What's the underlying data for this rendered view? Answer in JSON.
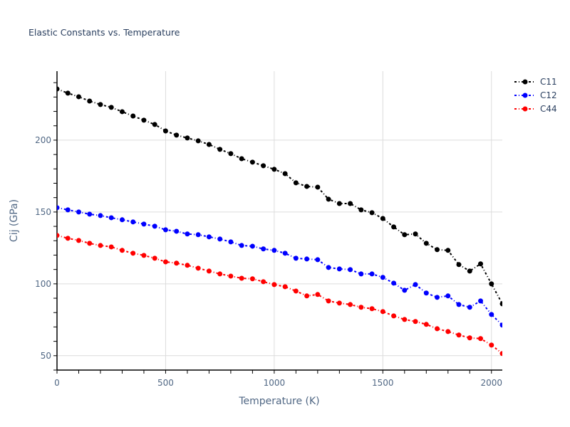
{
  "chart_data": {
    "type": "line",
    "title": "Elastic Constants vs. Temperature",
    "xlabel": "Temperature (K)",
    "ylabel": "Cij (GPa)",
    "xlim": [
      0,
      2050
    ],
    "ylim": [
      40,
      248
    ],
    "xticks": [
      0,
      500,
      1000,
      1500,
      2000
    ],
    "yticks": [
      50,
      100,
      150,
      200
    ],
    "x_minor_step": 100,
    "y_minor_step": 10,
    "grid": true,
    "legend_position": "top-right",
    "x": [
      0,
      50,
      100,
      150,
      200,
      250,
      300,
      350,
      400,
      450,
      500,
      550,
      600,
      650,
      700,
      750,
      800,
      850,
      900,
      950,
      1000,
      1050,
      1100,
      1150,
      1200,
      1250,
      1300,
      1350,
      1400,
      1450,
      1500,
      1550,
      1600,
      1650,
      1700,
      1750,
      1800,
      1850,
      1900,
      1950,
      2000,
      2050
    ],
    "series": [
      {
        "name": "C11",
        "color": "#000000",
        "values": [
          235.6,
          232.7,
          230.2,
          227.2,
          224.8,
          222.8,
          219.8,
          216.8,
          213.9,
          210.9,
          206.4,
          203.5,
          201.5,
          199.5,
          197.0,
          193.6,
          190.6,
          187.1,
          184.7,
          182.2,
          179.7,
          176.7,
          170.3,
          167.8,
          167.3,
          158.9,
          155.9,
          155.9,
          151.5,
          149.5,
          145.5,
          139.6,
          134.2,
          134.7,
          128.2,
          123.8,
          123.3,
          113.4,
          108.9,
          113.9,
          100.0,
          86.1
        ]
      },
      {
        "name": "C12",
        "color": "#0000ff",
        "values": [
          153.0,
          151.5,
          150.0,
          148.5,
          147.5,
          146.0,
          144.6,
          143.1,
          141.6,
          140.1,
          137.6,
          136.6,
          134.7,
          134.2,
          132.7,
          131.2,
          129.2,
          126.7,
          126.2,
          124.3,
          123.3,
          121.3,
          117.8,
          117.3,
          116.8,
          111.4,
          110.4,
          109.9,
          106.9,
          106.9,
          104.5,
          100.5,
          95.5,
          99.5,
          93.6,
          90.6,
          91.6,
          85.6,
          83.7,
          88.1,
          78.7,
          71.3
        ]
      },
      {
        "name": "C44",
        "color": "#ff0000",
        "values": [
          133.7,
          131.7,
          130.2,
          128.2,
          126.7,
          125.7,
          123.3,
          121.3,
          119.8,
          117.8,
          115.3,
          114.4,
          112.9,
          110.9,
          108.9,
          106.9,
          105.4,
          103.9,
          103.5,
          101.5,
          99.5,
          98.0,
          95.0,
          91.6,
          92.6,
          88.1,
          86.6,
          85.6,
          83.7,
          82.7,
          80.7,
          77.7,
          75.2,
          73.8,
          71.8,
          68.8,
          66.8,
          64.4,
          62.4,
          61.9,
          57.4,
          51.5
        ]
      }
    ]
  }
}
